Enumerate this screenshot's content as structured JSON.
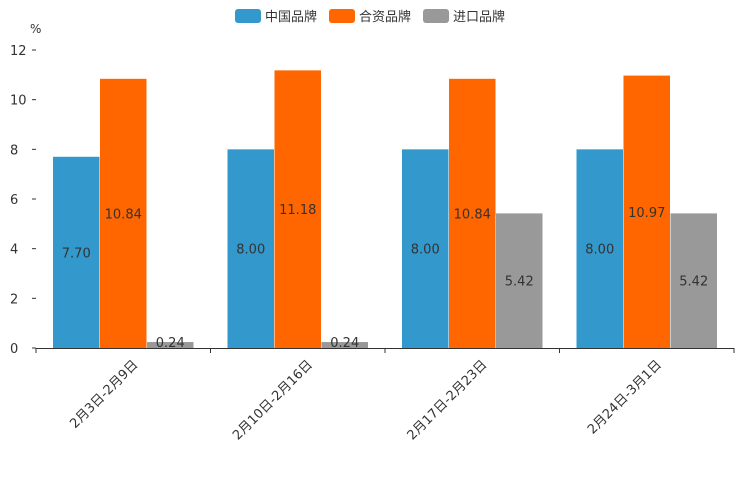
{
  "chart_data": {
    "type": "bar",
    "unit": "%",
    "categories": [
      "2月3日-2月9日",
      "2月10日-2月16日",
      "2月17日-2月23日",
      "2月24日-3月1日"
    ],
    "series": [
      {
        "name": "中国品牌",
        "color": "#3399cc",
        "values": [
          7.7,
          8.0,
          8.0,
          8.0
        ],
        "labels": [
          "7.70",
          "8.00",
          "8.00",
          "8.00"
        ]
      },
      {
        "name": "合资品牌",
        "color": "#ff6600",
        "values": [
          10.84,
          11.18,
          10.84,
          10.97
        ],
        "labels": [
          "10.84",
          "11.18",
          "10.84",
          "10.97"
        ]
      },
      {
        "name": "进口品牌",
        "color": "#999999",
        "values": [
          0.24,
          0.24,
          5.42,
          5.42
        ],
        "labels": [
          "0.24",
          "0.24",
          "5.42",
          "5.42"
        ]
      }
    ],
    "ylim": [
      0,
      12
    ],
    "yticks": [
      "0",
      "2",
      "4",
      "6",
      "8",
      "10",
      "12"
    ],
    "legend_position": "top-center",
    "grid": false
  }
}
